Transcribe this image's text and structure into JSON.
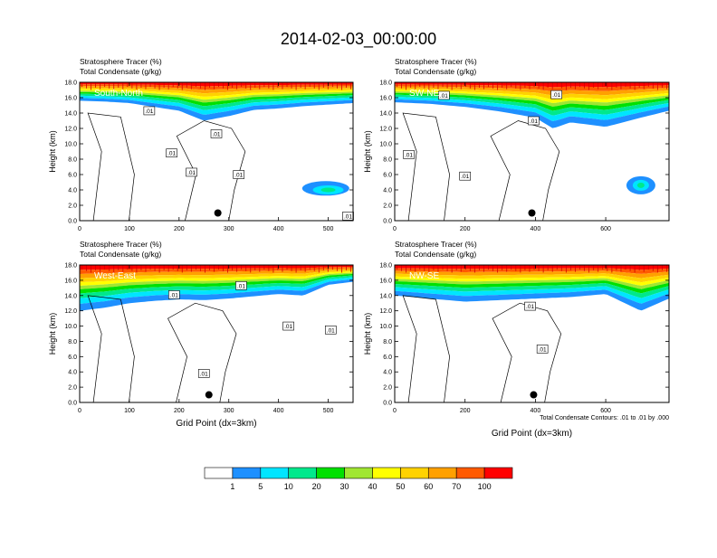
{
  "title": "2014-02-03_00:00:00",
  "footnote": "Total Condensate Contours: .01 to .01 by .000",
  "colorbar": {
    "labels": [
      "1",
      "5",
      "10",
      "20",
      "30",
      "40",
      "50",
      "60",
      "70",
      "100"
    ],
    "colors": [
      "#ffffff",
      "#1e90ff",
      "#00e5ff",
      "#00e88c",
      "#00e000",
      "#a0e632",
      "#ffff00",
      "#ffd200",
      "#ffa000",
      "#ff5a00",
      "#ff0000"
    ]
  },
  "chart_data": [
    {
      "type": "heatmap",
      "label": "South-North",
      "header_lines": [
        "Stratosphere Tracer   (%)",
        "Total Condensate   (g/kg)"
      ],
      "ylabel": "Height (km)",
      "xlabel": "",
      "xlim": [
        0,
        550
      ],
      "ylim": [
        0,
        18
      ],
      "x_ticks": [
        "0",
        "100",
        "200",
        "300",
        "400",
        "500"
      ],
      "x_tick_values": [
        0,
        100,
        200,
        300,
        400,
        500
      ],
      "y_ticks": [
        "0.0",
        "2.0",
        "4.0",
        "6.0",
        "8.0",
        "10.0",
        "12.0",
        "14.0",
        "16.0",
        "18.0"
      ],
      "contour_labels": [
        {
          "text": ".01",
          "x": 140,
          "y": 14.3
        },
        {
          "text": ".01",
          "x": 275,
          "y": 11.3
        },
        {
          "text": ".01",
          "x": 185,
          "y": 8.8
        },
        {
          "text": ".01",
          "x": 225,
          "y": 6.3
        },
        {
          "text": ".01",
          "x": 320,
          "y": 6.0
        },
        {
          "text": ".01",
          "x": 540,
          "y": 0.6
        }
      ],
      "tracer_base_profile": [
        [
          0,
          15.6
        ],
        [
          50,
          15.5
        ],
        [
          100,
          15.3
        ],
        [
          150,
          14.8
        ],
        [
          200,
          14.3
        ],
        [
          250,
          13.0
        ],
        [
          300,
          13.6
        ],
        [
          350,
          14.4
        ],
        [
          400,
          14.6
        ],
        [
          450,
          14.9
        ],
        [
          500,
          15.1
        ],
        [
          550,
          15.3
        ]
      ],
      "marker": {
        "x": 278,
        "y": 1.0
      }
    },
    {
      "type": "heatmap",
      "label": "SW-NE",
      "header_lines": [
        "Stratosphere Tracer   (%)",
        "Total Condensate   (g/kg)"
      ],
      "ylabel": "Height (km)",
      "xlabel": "",
      "xlim": [
        0,
        780
      ],
      "ylim": [
        0,
        18
      ],
      "x_ticks": [
        "0",
        "200",
        "400",
        "600"
      ],
      "x_tick_values": [
        0,
        200,
        400,
        600
      ],
      "y_ticks": [
        "0.0",
        "2.0",
        "4.0",
        "6.0",
        "8.0",
        "10.0",
        "12.0",
        "14.0",
        "16.0",
        "18.0"
      ],
      "contour_labels": [
        {
          "text": ".01",
          "x": 140,
          "y": 16.3
        },
        {
          "text": ".01",
          "x": 460,
          "y": 16.4
        },
        {
          "text": ".01",
          "x": 395,
          "y": 13.0
        },
        {
          "text": ".01",
          "x": 40,
          "y": 8.6
        },
        {
          "text": ".01",
          "x": 200,
          "y": 5.8
        }
      ],
      "tracer_base_profile": [
        [
          0,
          15.4
        ],
        [
          100,
          15.2
        ],
        [
          200,
          14.8
        ],
        [
          300,
          14.2
        ],
        [
          400,
          13.4
        ],
        [
          450,
          12.0
        ],
        [
          500,
          12.8
        ],
        [
          600,
          12.2
        ],
        [
          700,
          13.4
        ],
        [
          780,
          14.3
        ]
      ],
      "marker": {
        "x": 390,
        "y": 1.0
      }
    },
    {
      "type": "heatmap",
      "label": "West-East",
      "header_lines": [
        "Stratosphere Tracer   (%)",
        "Total Condensate   (g/kg)"
      ],
      "ylabel": "Height (km)",
      "xlabel": "Grid Point (dx=3km)",
      "xlim": [
        0,
        550
      ],
      "ylim": [
        0,
        18
      ],
      "x_ticks": [
        "0",
        "100",
        "200",
        "300",
        "400",
        "500"
      ],
      "x_tick_values": [
        0,
        100,
        200,
        300,
        400,
        500
      ],
      "y_ticks": [
        "0.0",
        "2.0",
        "4.0",
        "6.0",
        "8.0",
        "10.0",
        "12.0",
        "14.0",
        "16.0",
        "18.0"
      ],
      "contour_labels": [
        {
          "text": ".01",
          "x": 190,
          "y": 14.1
        },
        {
          "text": ".01",
          "x": 325,
          "y": 15.3
        },
        {
          "text": ".01",
          "x": 420,
          "y": 10.0
        },
        {
          "text": ".01",
          "x": 505,
          "y": 9.5
        },
        {
          "text": ".01",
          "x": 250,
          "y": 3.8
        }
      ],
      "tracer_base_profile": [
        [
          0,
          12.0
        ],
        [
          50,
          12.4
        ],
        [
          100,
          13.0
        ],
        [
          150,
          13.3
        ],
        [
          200,
          13.5
        ],
        [
          250,
          13.4
        ],
        [
          300,
          13.6
        ],
        [
          350,
          13.9
        ],
        [
          400,
          14.2
        ],
        [
          450,
          14.0
        ],
        [
          500,
          15.4
        ],
        [
          550,
          15.8
        ]
      ],
      "marker": {
        "x": 260,
        "y": 1.0
      }
    },
    {
      "type": "heatmap",
      "label": "NW-SE",
      "header_lines": [
        "Stratosphere Tracer   (%)",
        "Total Condensate   (g/kg)"
      ],
      "ylabel": "Height (km)",
      "xlabel": "Grid Point (dx=3km)",
      "xlim": [
        0,
        780
      ],
      "ylim": [
        0,
        18
      ],
      "x_ticks": [
        "0",
        "200",
        "400",
        "600"
      ],
      "x_tick_values": [
        0,
        200,
        400,
        600
      ],
      "y_ticks": [
        "0.0",
        "2.0",
        "4.0",
        "6.0",
        "8.0",
        "10.0",
        "12.0",
        "14.0",
        "16.0",
        "18.0"
      ],
      "contour_labels": [
        {
          "text": ".01",
          "x": 385,
          "y": 12.6
        },
        {
          "text": ".01",
          "x": 420,
          "y": 7.0
        }
      ],
      "tracer_base_profile": [
        [
          0,
          14.0
        ],
        [
          100,
          13.6
        ],
        [
          200,
          13.2
        ],
        [
          300,
          13.4
        ],
        [
          400,
          13.6
        ],
        [
          500,
          13.8
        ],
        [
          600,
          14.2
        ],
        [
          700,
          12.0
        ],
        [
          780,
          13.6
        ]
      ],
      "marker": {
        "x": 395,
        "y": 1.0
      }
    }
  ]
}
